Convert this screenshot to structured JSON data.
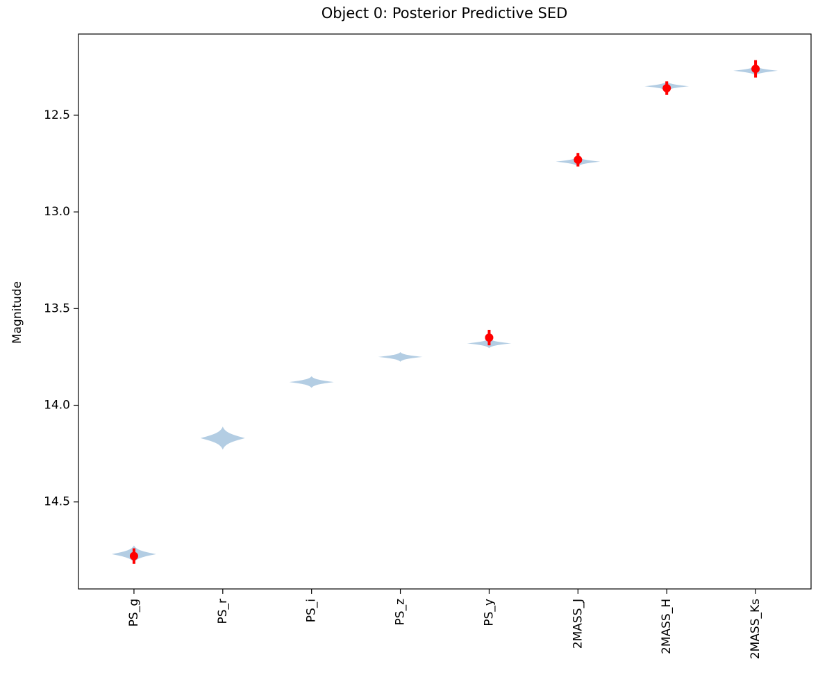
{
  "chart_data": {
    "type": "violin",
    "title": "Object 0: Posterior Predictive SED",
    "ylabel": "Magnitude",
    "categories": [
      "PS_g",
      "PS_r",
      "PS_i",
      "PS_z",
      "PS_y",
      "2MASS_J",
      "2MASS_H",
      "2MASS_Ks"
    ],
    "violins": {
      "color": "#b3cde3",
      "values": [
        14.77,
        14.17,
        13.88,
        13.75,
        13.68,
        12.74,
        12.35,
        12.27
      ],
      "spread": [
        0.045,
        0.06,
        0.03,
        0.025,
        0.025,
        0.025,
        0.025,
        0.025
      ]
    },
    "observed": {
      "color": "#ff0000",
      "values": [
        14.78,
        null,
        null,
        null,
        13.65,
        12.73,
        12.36,
        12.26
      ],
      "errors": [
        0.04,
        null,
        null,
        null,
        0.04,
        0.035,
        0.035,
        0.045
      ]
    },
    "ylim": [
      12.08,
      14.95
    ],
    "y_inverted": true,
    "yticks": [
      {
        "value": 12.5,
        "label": "12.5"
      },
      {
        "value": 13.0,
        "label": "13.0"
      },
      {
        "value": 13.5,
        "label": "13.5"
      },
      {
        "value": 14.0,
        "label": "14.0"
      },
      {
        "value": 14.5,
        "label": "14.5"
      }
    ]
  }
}
